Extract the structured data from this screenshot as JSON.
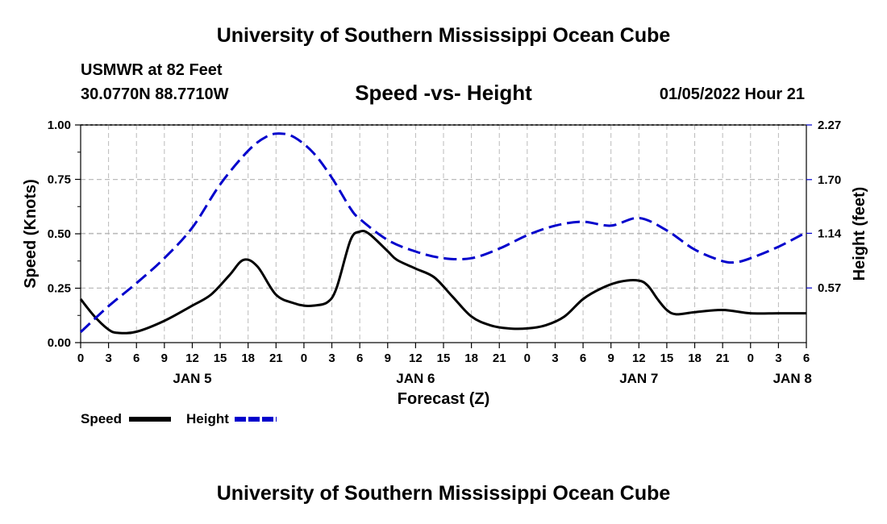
{
  "header": {
    "title": "University of Southern Mississippi Ocean Cube",
    "station": "USMWR at 82 Feet",
    "coordinates": "30.0770N  88.7710W",
    "subtitle": "Speed -vs- Height",
    "datetime": "01/05/2022 Hour 21"
  },
  "footer": {
    "title": "University of Southern Mississippi Ocean Cube"
  },
  "legend": {
    "speed_label": "Speed",
    "height_label": "Height"
  },
  "colors": {
    "speed": "#000000",
    "height": "#0000cc",
    "grid": "#bbbbbb"
  },
  "chart_data": {
    "type": "line",
    "title": "Speed -vs- Height",
    "xlabel": "Forecast (Z)",
    "ylabel": "Speed (Knots)",
    "y2label": "Height (feet)",
    "xlim": [
      0,
      78
    ],
    "ylim": [
      0,
      1.0
    ],
    "y2lim": [
      0,
      2.27
    ],
    "x_ticks": [
      0,
      3,
      6,
      9,
      12,
      15,
      18,
      21,
      24,
      27,
      30,
      33,
      36,
      39,
      42,
      45,
      48,
      51,
      54,
      57,
      60,
      63,
      66,
      69,
      72,
      75,
      78
    ],
    "x_tick_labels": [
      "0",
      "3",
      "6",
      "9",
      "12",
      "15",
      "18",
      "21",
      "0",
      "3",
      "6",
      "9",
      "12",
      "15",
      "18",
      "21",
      "0",
      "3",
      "6",
      "9",
      "12",
      "15",
      "18",
      "21",
      "0",
      "3",
      "6"
    ],
    "date_labels": [
      {
        "x": 12,
        "label": "JAN 5"
      },
      {
        "x": 36,
        "label": "JAN 6"
      },
      {
        "x": 60,
        "label": "JAN 7"
      },
      {
        "x": 76.5,
        "label": "JAN 8"
      }
    ],
    "y_ticks": [
      0,
      0.25,
      0.5,
      0.75,
      1.0
    ],
    "y_tick_labels": [
      "0.00",
      "0.25",
      "0.50",
      "0.75",
      "1.00"
    ],
    "y2_ticks": [
      0.57,
      1.14,
      1.7,
      2.27
    ],
    "y2_tick_labels": [
      "0.57",
      "1.14",
      "1.70",
      "2.27"
    ],
    "grid": true,
    "series": [
      {
        "name": "Speed",
        "axis": "left",
        "style": "solid",
        "x": [
          0,
          1.5,
          3,
          4,
          6,
          9,
          12,
          14,
          16,
          17.5,
          19,
          21,
          23,
          24,
          25,
          26.5,
          27.5,
          29,
          30,
          31,
          33,
          34,
          36,
          38,
          40,
          42,
          44,
          46,
          48,
          50,
          52,
          54,
          56,
          58,
          60,
          61,
          62,
          63,
          64,
          66,
          69,
          72,
          75,
          78
        ],
        "values": [
          0.2,
          0.12,
          0.06,
          0.045,
          0.05,
          0.1,
          0.17,
          0.22,
          0.31,
          0.38,
          0.35,
          0.22,
          0.18,
          0.17,
          0.17,
          0.185,
          0.25,
          0.47,
          0.51,
          0.5,
          0.42,
          0.38,
          0.34,
          0.3,
          0.21,
          0.12,
          0.08,
          0.065,
          0.065,
          0.08,
          0.12,
          0.2,
          0.25,
          0.28,
          0.285,
          0.26,
          0.2,
          0.15,
          0.13,
          0.14,
          0.15,
          0.135,
          0.135,
          0.135
        ]
      },
      {
        "name": "Height",
        "axis": "right",
        "style": "dashed",
        "x": [
          0,
          3,
          6,
          9,
          12,
          15,
          18,
          20,
          21.5,
          23,
          25,
          27,
          29,
          30,
          33,
          36,
          39,
          42,
          45,
          48,
          51,
          54,
          57,
          60,
          63,
          66,
          69,
          70.5,
          72,
          75,
          78
        ],
        "values": [
          0.11,
          0.38,
          0.62,
          0.88,
          1.2,
          1.65,
          2.0,
          2.15,
          2.18,
          2.14,
          1.98,
          1.72,
          1.4,
          1.29,
          1.07,
          0.95,
          0.88,
          0.88,
          0.98,
          1.12,
          1.22,
          1.26,
          1.22,
          1.3,
          1.17,
          0.97,
          0.85,
          0.84,
          0.88,
          1.0,
          1.15
        ]
      }
    ]
  }
}
